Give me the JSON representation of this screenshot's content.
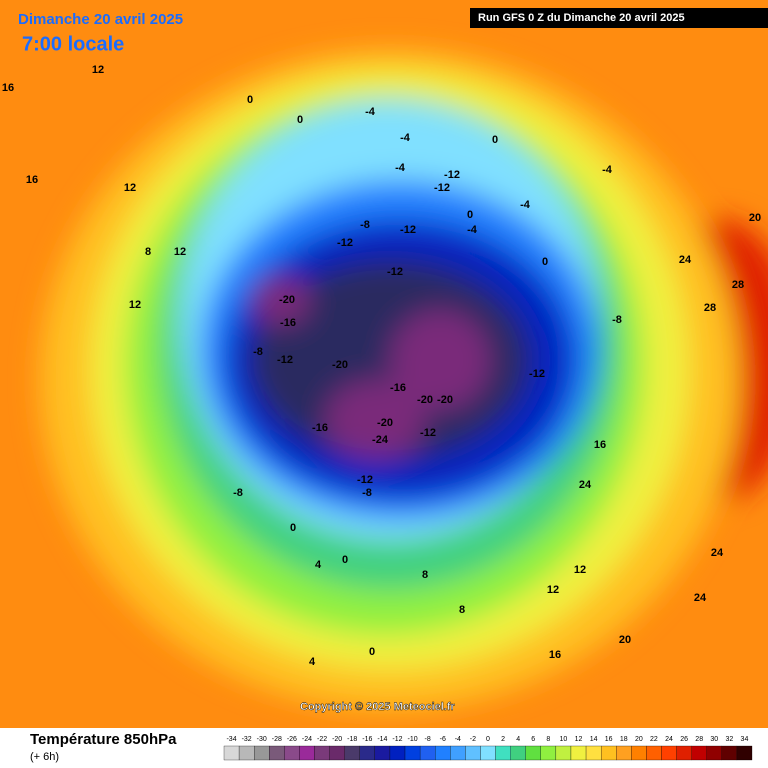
{
  "header": {
    "date": "Dimanche 20 avril 2025",
    "time": "7:00 locale",
    "run": "Run GFS 0 Z du Dimanche 20 avril 2025"
  },
  "copyright": "Copyright © 2025 Meteociel.fr",
  "footer": {
    "title": "Température 850hPa",
    "step": "(+ 6h)"
  },
  "scale": {
    "values": [
      -34,
      -32,
      -30,
      -28,
      -26,
      -24,
      -22,
      -20,
      -18,
      -16,
      -14,
      -12,
      -10,
      -8,
      -6,
      -4,
      -2,
      0,
      2,
      4,
      6,
      8,
      10,
      12,
      14,
      16,
      18,
      20,
      22,
      24,
      26,
      28,
      30,
      32,
      34
    ],
    "colors": [
      "#d8d8d8",
      "#b8b8b8",
      "#989898",
      "#7a5a7a",
      "#8a4a8a",
      "#9a2a9a",
      "#7a3a7a",
      "#6a2a6a",
      "#4a3a6a",
      "#2a2a8a",
      "#1a1aa0",
      "#0020c0",
      "#0040e0",
      "#2060f0",
      "#2080ff",
      "#40a0ff",
      "#60c0ff",
      "#80e0ff",
      "#40e0c0",
      "#40d080",
      "#60e040",
      "#90f040",
      "#c0f040",
      "#f0f040",
      "#ffe040",
      "#ffc020",
      "#ffa020",
      "#ff8000",
      "#ff6000",
      "#ff4000",
      "#e02000",
      "#c00000",
      "#900000",
      "#600000",
      "#300000"
    ]
  },
  "contour_labels": [
    16,
    12,
    12,
    16,
    8,
    12,
    12,
    0,
    0,
    -4,
    -4,
    -4,
    0,
    -12,
    -12,
    -4,
    0,
    -4,
    0,
    -8,
    -12,
    -12,
    -12,
    -20,
    -16,
    -8,
    -12,
    -20,
    -16,
    -16,
    -12,
    -20,
    -20,
    -24,
    -20,
    -12,
    -8,
    -12,
    -8,
    0,
    0,
    4,
    8,
    12,
    16,
    20,
    24,
    24,
    28,
    28,
    24,
    20,
    24,
    16,
    12,
    8,
    4,
    0,
    -4,
    -8
  ]
}
